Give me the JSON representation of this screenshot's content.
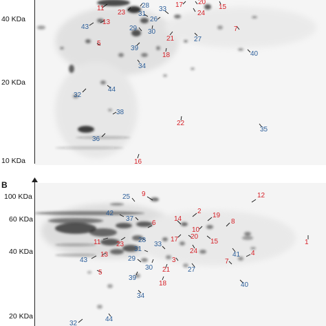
{
  "panel_b_letter": "B",
  "panelA": {
    "mw_labels": [
      "40 KDa",
      "20 KDa",
      "10 KDa"
    ],
    "spots": [
      {
        "id": "11",
        "c": "red"
      },
      {
        "id": "23",
        "c": "red"
      },
      {
        "id": "28",
        "c": "blue"
      },
      {
        "id": "17",
        "c": "red"
      },
      {
        "id": "20",
        "c": "red"
      },
      {
        "id": "15",
        "c": "red"
      },
      {
        "id": "24",
        "c": "red"
      },
      {
        "id": "13",
        "c": "red"
      },
      {
        "id": "31",
        "c": "blue"
      },
      {
        "id": "33",
        "c": "blue"
      },
      {
        "id": "43",
        "c": "blue"
      },
      {
        "id": "26",
        "c": "blue"
      },
      {
        "id": "29",
        "c": "blue"
      },
      {
        "id": "30",
        "c": "blue"
      },
      {
        "id": "7",
        "c": "red"
      },
      {
        "id": "21",
        "c": "red"
      },
      {
        "id": "27",
        "c": "blue"
      },
      {
        "id": "5",
        "c": "red"
      },
      {
        "id": "39",
        "c": "blue"
      },
      {
        "id": "18",
        "c": "red"
      },
      {
        "id": "40",
        "c": "blue"
      },
      {
        "id": "34",
        "c": "blue"
      },
      {
        "id": "44",
        "c": "blue"
      },
      {
        "id": "32",
        "c": "blue"
      },
      {
        "id": "38",
        "c": "blue"
      },
      {
        "id": "22",
        "c": "red"
      },
      {
        "id": "35",
        "c": "blue"
      },
      {
        "id": "36",
        "c": "blue"
      },
      {
        "id": "16",
        "c": "red"
      }
    ]
  },
  "panelB": {
    "mw_labels": [
      "100 KDa",
      "60 KDa",
      "40 KDa",
      "20 KDa"
    ],
    "spots": [
      {
        "id": "9",
        "c": "red"
      },
      {
        "id": "12",
        "c": "red"
      },
      {
        "id": "25",
        "c": "blue"
      },
      {
        "id": "2",
        "c": "red"
      },
      {
        "id": "42",
        "c": "blue"
      },
      {
        "id": "37",
        "c": "blue"
      },
      {
        "id": "14",
        "c": "red"
      },
      {
        "id": "19",
        "c": "red"
      },
      {
        "id": "6",
        "c": "red"
      },
      {
        "id": "8",
        "c": "red"
      },
      {
        "id": "10",
        "c": "red"
      },
      {
        "id": "11",
        "c": "red"
      },
      {
        "id": "23",
        "c": "red"
      },
      {
        "id": "28",
        "c": "blue"
      },
      {
        "id": "17",
        "c": "red"
      },
      {
        "id": "20",
        "c": "red"
      },
      {
        "id": "15",
        "c": "red"
      },
      {
        "id": "1",
        "c": "red"
      },
      {
        "id": "31",
        "c": "blue"
      },
      {
        "id": "33",
        "c": "blue"
      },
      {
        "id": "24",
        "c": "red"
      },
      {
        "id": "41",
        "c": "blue"
      },
      {
        "id": "4",
        "c": "red"
      },
      {
        "id": "43",
        "c": "blue"
      },
      {
        "id": "13",
        "c": "red"
      },
      {
        "id": "29",
        "c": "blue"
      },
      {
        "id": "30",
        "c": "blue"
      },
      {
        "id": "3",
        "c": "red"
      },
      {
        "id": "27",
        "c": "blue"
      },
      {
        "id": "7",
        "c": "red"
      },
      {
        "id": "5",
        "c": "red"
      },
      {
        "id": "39",
        "c": "blue"
      },
      {
        "id": "21",
        "c": "red"
      },
      {
        "id": "18",
        "c": "red"
      },
      {
        "id": "40",
        "c": "blue"
      },
      {
        "id": "34",
        "c": "blue"
      },
      {
        "id": "32",
        "c": "blue"
      },
      {
        "id": "44",
        "c": "blue"
      }
    ]
  },
  "colors": {
    "red": "#d61f26",
    "blue": "#2d5f9a",
    "axis": "#222222"
  }
}
